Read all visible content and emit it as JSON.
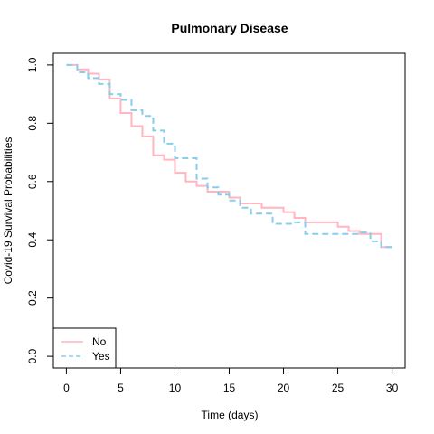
{
  "chart_data": {
    "type": "line",
    "title": "Pulmonary Disease",
    "xlabel": "Time (days)",
    "ylabel": "Covid-19 Survival Probabilities",
    "xlim": [
      -1.2,
      31.2
    ],
    "ylim": [
      -0.04,
      1.04
    ],
    "x_ticks": [
      0,
      5,
      10,
      15,
      20,
      25,
      30
    ],
    "y_ticks": [
      0.0,
      0.2,
      0.4,
      0.6,
      0.8,
      1.0
    ],
    "legend_position": "bottom-left",
    "series": [
      {
        "name": "No",
        "color": "#FFB6C1",
        "dash": "solid",
        "steps": [
          [
            0,
            1.0
          ],
          [
            1,
            0.985
          ],
          [
            2,
            0.97
          ],
          [
            3,
            0.95
          ],
          [
            4,
            0.885
          ],
          [
            5,
            0.835
          ],
          [
            6,
            0.79
          ],
          [
            7,
            0.755
          ],
          [
            8,
            0.69
          ],
          [
            9,
            0.675
          ],
          [
            10,
            0.63
          ],
          [
            11,
            0.6
          ],
          [
            12,
            0.585
          ],
          [
            13,
            0.565
          ],
          [
            15,
            0.545
          ],
          [
            16,
            0.525
          ],
          [
            18,
            0.51
          ],
          [
            20,
            0.495
          ],
          [
            21,
            0.475
          ],
          [
            22,
            0.46
          ],
          [
            25,
            0.445
          ],
          [
            26,
            0.43
          ],
          [
            27,
            0.42
          ],
          [
            29,
            0.375
          ],
          [
            30,
            0.375
          ]
        ]
      },
      {
        "name": "Yes",
        "color": "#87CEEB",
        "dash": "dashed",
        "steps": [
          [
            0,
            1.0
          ],
          [
            1,
            0.975
          ],
          [
            2,
            0.955
          ],
          [
            3,
            0.935
          ],
          [
            4,
            0.9
          ],
          [
            5,
            0.88
          ],
          [
            6,
            0.845
          ],
          [
            7,
            0.825
          ],
          [
            8,
            0.775
          ],
          [
            9,
            0.73
          ],
          [
            10,
            0.68
          ],
          [
            12,
            0.61
          ],
          [
            13,
            0.58
          ],
          [
            14,
            0.555
          ],
          [
            15,
            0.535
          ],
          [
            16,
            0.51
          ],
          [
            17,
            0.49
          ],
          [
            19,
            0.455
          ],
          [
            21,
            0.46
          ],
          [
            22,
            0.42
          ],
          [
            27,
            0.425
          ],
          [
            28,
            0.395
          ],
          [
            29,
            0.375
          ],
          [
            30,
            0.375
          ]
        ]
      }
    ]
  }
}
